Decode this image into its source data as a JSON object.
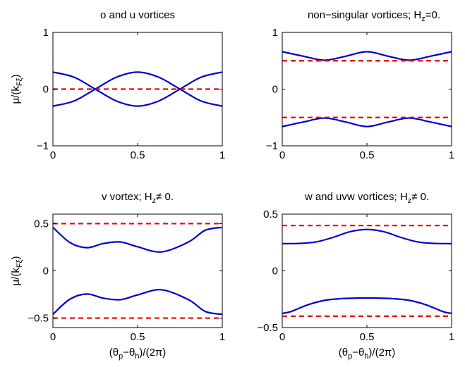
{
  "chart_data": [
    {
      "type": "line",
      "title": "o and u vortices",
      "xlabel": "",
      "ylabel": "μ/(k_Fξ)",
      "xlim": [
        0,
        1
      ],
      "ylim": [
        -1,
        1
      ],
      "xticks": [
        "0",
        "0.5",
        "1"
      ],
      "yticks": [
        "−1",
        "0",
        "1"
      ],
      "grid": false,
      "series": [
        {
          "style": "solid",
          "color": "#0000cc",
          "x": [
            0,
            0.125,
            0.25,
            0.375,
            0.5,
            0.625,
            0.75,
            0.875,
            1
          ],
          "y": [
            0.3,
            0.21,
            0.0,
            -0.21,
            -0.3,
            -0.21,
            0.0,
            0.21,
            0.3
          ]
        },
        {
          "style": "solid",
          "color": "#0000cc",
          "x": [
            0,
            0.125,
            0.25,
            0.375,
            0.5,
            0.625,
            0.75,
            0.875,
            1
          ],
          "y": [
            -0.3,
            -0.21,
            0.0,
            0.21,
            0.3,
            0.21,
            0.0,
            -0.21,
            -0.3
          ]
        },
        {
          "style": "dashed",
          "color": "#ee0000",
          "x": [
            0,
            1
          ],
          "y": [
            0,
            0
          ]
        }
      ]
    },
    {
      "type": "line",
      "title": "non−singular vortices; H_z=0.",
      "xlabel": "",
      "ylabel": "",
      "xlim": [
        0,
        1
      ],
      "ylim": [
        -1,
        1
      ],
      "xticks": [
        "0",
        "0.5",
        "1"
      ],
      "yticks": [
        "−1",
        "0",
        "1"
      ],
      "grid": false,
      "series": [
        {
          "style": "solid",
          "color": "#0000cc",
          "x": [
            0,
            0.125,
            0.25,
            0.375,
            0.5,
            0.625,
            0.75,
            0.875,
            1
          ],
          "y": [
            0.66,
            0.58,
            0.51,
            0.58,
            0.66,
            0.58,
            0.51,
            0.58,
            0.66
          ]
        },
        {
          "style": "solid",
          "color": "#0000cc",
          "x": [
            0,
            0.125,
            0.25,
            0.375,
            0.5,
            0.625,
            0.75,
            0.875,
            1
          ],
          "y": [
            -0.66,
            -0.58,
            -0.51,
            -0.58,
            -0.66,
            -0.58,
            -0.51,
            -0.58,
            -0.66
          ]
        },
        {
          "style": "dashed",
          "color": "#ee0000",
          "x": [
            0,
            1
          ],
          "y": [
            0.5,
            0.5
          ]
        },
        {
          "style": "dashed",
          "color": "#ee0000",
          "x": [
            0,
            1
          ],
          "y": [
            -0.5,
            -0.5
          ]
        }
      ]
    },
    {
      "type": "line",
      "title": "v vortex; H_z≠ 0.",
      "xlabel": "(θ_p−θ_h)/(2π)",
      "ylabel": "μ/(k_Fξ)",
      "xlim": [
        0,
        1
      ],
      "ylim": [
        -0.6,
        0.6
      ],
      "xticks": [
        "0",
        "0.5",
        "1"
      ],
      "yticks": [
        "−0.5",
        "0",
        "0.5"
      ],
      "grid": false,
      "series": [
        {
          "style": "solid",
          "color": "#0000cc",
          "x": [
            0,
            0.1,
            0.2,
            0.3,
            0.4,
            0.5,
            0.64,
            0.8,
            0.9,
            1
          ],
          "y": [
            0.46,
            0.3,
            0.245,
            0.29,
            0.305,
            0.255,
            0.2,
            0.305,
            0.43,
            0.46
          ]
        },
        {
          "style": "solid",
          "color": "#0000cc",
          "x": [
            0,
            0.1,
            0.2,
            0.3,
            0.4,
            0.5,
            0.64,
            0.8,
            0.9,
            1
          ],
          "y": [
            -0.46,
            -0.3,
            -0.245,
            -0.29,
            -0.305,
            -0.255,
            -0.2,
            -0.305,
            -0.43,
            -0.46
          ]
        },
        {
          "style": "dashed",
          "color": "#ee0000",
          "x": [
            0,
            1
          ],
          "y": [
            0.5,
            0.5
          ]
        },
        {
          "style": "dashed",
          "color": "#ee0000",
          "x": [
            0,
            1
          ],
          "y": [
            -0.5,
            -0.5
          ]
        }
      ]
    },
    {
      "type": "line",
      "title": "w and uvw vortices; H_z≠ 0.",
      "xlabel": "(θ_p−θ_h)/(2π)",
      "ylabel": "",
      "xlim": [
        0,
        1
      ],
      "ylim": [
        -0.5,
        0.5
      ],
      "xticks": [
        "0",
        "0.5",
        "1"
      ],
      "yticks": [
        "−0.5",
        "0",
        "0.5"
      ],
      "grid": false,
      "series": [
        {
          "style": "solid",
          "color": "#0000cc",
          "x": [
            0,
            0.1,
            0.2,
            0.3,
            0.4,
            0.5,
            0.6,
            0.7,
            0.8,
            0.9,
            1
          ],
          "y": [
            0.24,
            0.242,
            0.255,
            0.295,
            0.345,
            0.365,
            0.345,
            0.295,
            0.255,
            0.242,
            0.24
          ]
        },
        {
          "style": "solid",
          "color": "#0000cc",
          "x": [
            0,
            0.05,
            0.15,
            0.25,
            0.35,
            0.45,
            0.55,
            0.65,
            0.75,
            0.85,
            0.95,
            1
          ],
          "y": [
            -0.375,
            -0.36,
            -0.3,
            -0.26,
            -0.245,
            -0.24,
            -0.24,
            -0.245,
            -0.26,
            -0.3,
            -0.36,
            -0.375
          ]
        },
        {
          "style": "dashed",
          "color": "#ee0000",
          "x": [
            0,
            1
          ],
          "y": [
            0.4,
            0.4
          ]
        },
        {
          "style": "dashed",
          "color": "#ee0000",
          "x": [
            0,
            1
          ],
          "y": [
            -0.4,
            -0.4
          ]
        }
      ]
    }
  ]
}
